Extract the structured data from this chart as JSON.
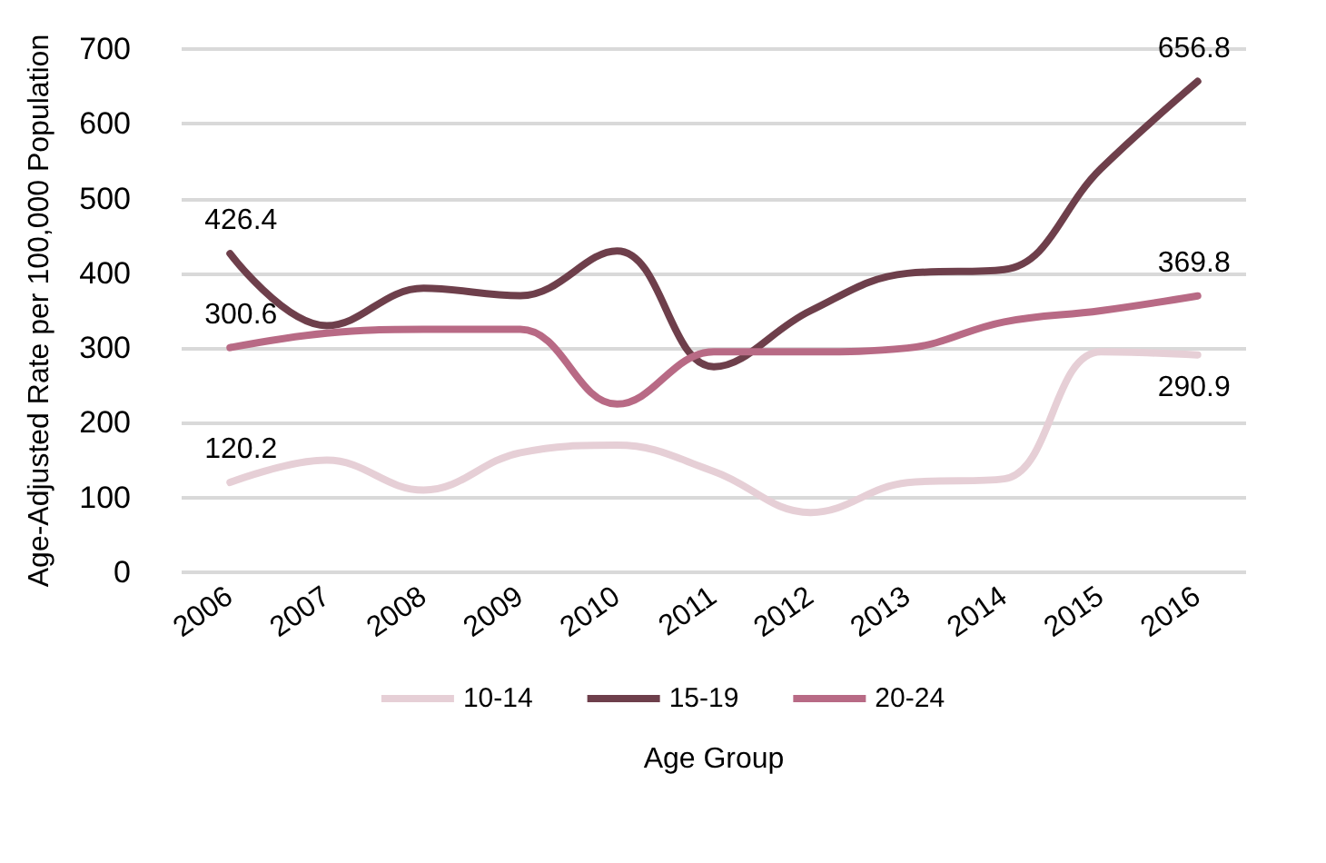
{
  "chart_data": {
    "type": "line",
    "xlabel": "Age Group",
    "ylabel": "Age-Adjusted Rate per 100,000 Population",
    "categories": [
      "2006",
      "2007",
      "2008",
      "2009",
      "2010",
      "2011",
      "2012",
      "2013",
      "2014",
      "2015",
      "2016"
    ],
    "series": [
      {
        "name": "10-14",
        "color": "#e6cfd6",
        "values": [
          120.2,
          150,
          110,
          160,
          170,
          135,
          80,
          120,
          125,
          295,
          290.9
        ],
        "value_labels": [
          "120.2",
          null,
          null,
          null,
          null,
          null,
          null,
          null,
          null,
          null,
          "290.9"
        ]
      },
      {
        "name": "15-19",
        "color": "#6e3f4b",
        "values": [
          426.4,
          330,
          380,
          370,
          430,
          275,
          350,
          400,
          405,
          540,
          656.8
        ],
        "value_labels": [
          "426.4",
          null,
          null,
          null,
          null,
          null,
          null,
          null,
          null,
          null,
          "656.8"
        ]
      },
      {
        "name": "20-24",
        "color": "#b86a85",
        "values": [
          300.6,
          320,
          325,
          325,
          225,
          295,
          295,
          300,
          335,
          350,
          369.8
        ],
        "value_labels": [
          "300.6",
          null,
          null,
          null,
          null,
          null,
          null,
          null,
          null,
          null,
          "369.8"
        ]
      }
    ],
    "ylim": [
      0,
      700
    ],
    "yticks": [
      0,
      100,
      200,
      300,
      400,
      500,
      600,
      700
    ],
    "grid": "y",
    "legend": "bottom",
    "marker": "none",
    "line_style": "solid"
  }
}
